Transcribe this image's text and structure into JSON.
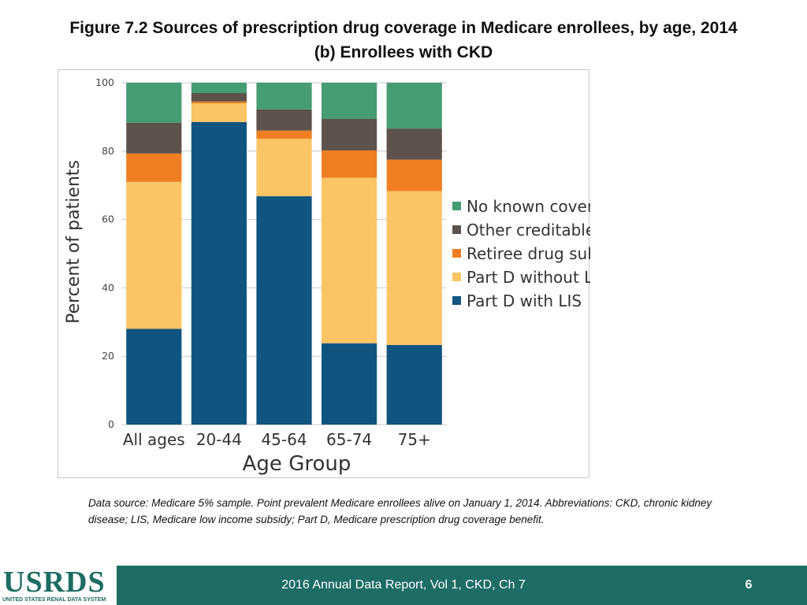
{
  "title": {
    "line1": "Figure 7.2 Sources of prescription drug coverage in Medicare enrollees, by age, 2014",
    "line2": "(b) Enrollees with CKD"
  },
  "chart_data": {
    "type": "bar",
    "stacked": true,
    "categories": [
      "All ages",
      "20-44",
      "45-64",
      "65-74",
      "75+"
    ],
    "series": [
      {
        "name": "Part D with LIS",
        "color": "#0f5580",
        "values": [
          28.0,
          88.5,
          66.8,
          23.8,
          23.3
        ]
      },
      {
        "name": "Part D without LIS",
        "color": "#fbc465",
        "values": [
          43.0,
          5.5,
          16.8,
          48.4,
          45.0
        ]
      },
      {
        "name": "Retiree drug subsidy",
        "color": "#ef7e22",
        "values": [
          8.3,
          0.5,
          2.4,
          8.0,
          9.2
        ]
      },
      {
        "name": "Other creditable coverage",
        "color": "#5d524c",
        "values": [
          9.0,
          2.5,
          6.2,
          9.2,
          9.1
        ]
      },
      {
        "name": "No known coverage",
        "color": "#469c73",
        "values": [
          11.7,
          3.0,
          7.8,
          10.6,
          13.4
        ]
      }
    ],
    "legend_order": [
      "No known coverage",
      "Other creditable coverage",
      "Retiree drug subsidy",
      "Part D without LIS",
      "Part D with LIS"
    ],
    "xlabel": "Age Group",
    "ylabel": "Percent of patients",
    "ylim": [
      0,
      100
    ],
    "yticks": [
      0,
      20,
      40,
      60,
      80,
      100
    ],
    "grid": true,
    "legend_position": "right"
  },
  "note": "Data source: Medicare 5% sample. Point prevalent Medicare enrollees alive on January 1, 2014. Abbreviations: CKD, chronic kidney disease; LIS, Medicare low income subsidy; Part D, Medicare prescription drug coverage benefit.",
  "footer": {
    "logo": "USRDS",
    "logo_subtitle": "UNITED STATES RENAL DATA SYSTEM",
    "text": "2016 Annual Data Report, Vol 1, CKD, Ch 7",
    "page": "6"
  }
}
